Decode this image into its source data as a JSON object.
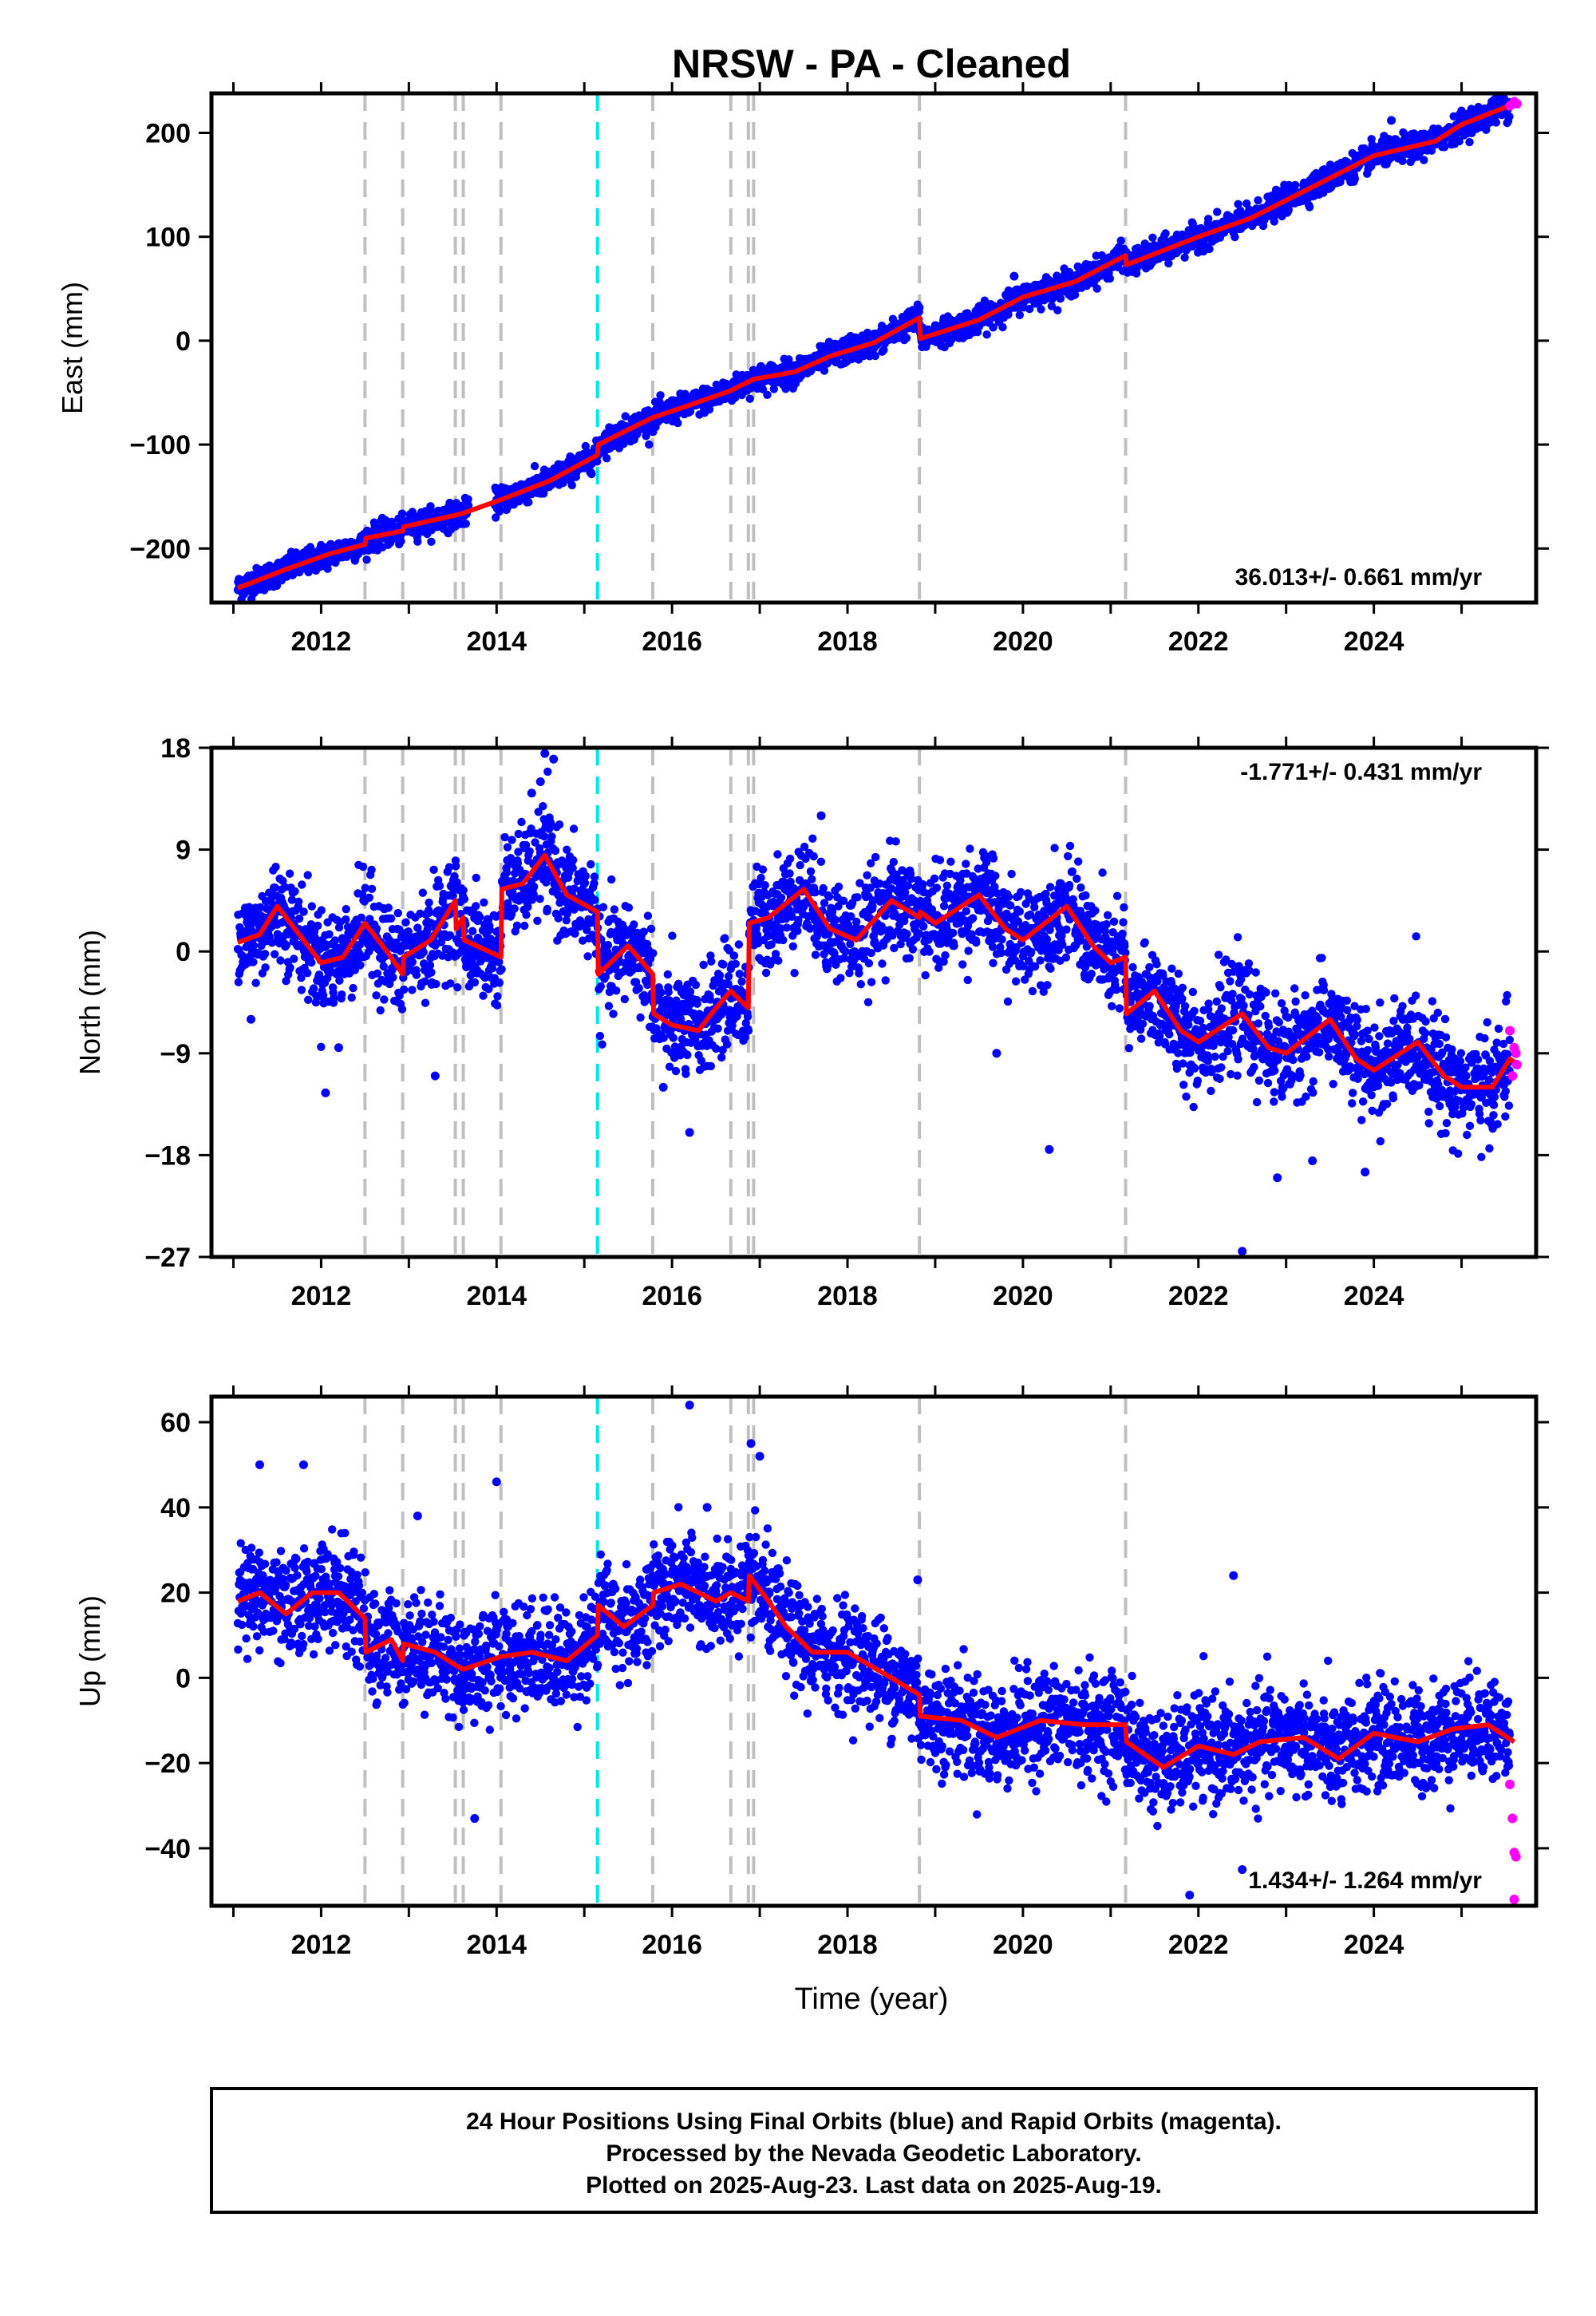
{
  "chart_data": {
    "title": "NRSW  - PA - Cleaned",
    "xlabel": "Time (year)",
    "xlim": [
      2010.75,
      2025.85
    ],
    "x_ticks": [
      2012,
      2014,
      2016,
      2018,
      2020,
      2022,
      2024
    ],
    "event_lines_gray": [
      2012.5,
      2012.93,
      2013.53,
      2013.62,
      2014.05,
      2015.78,
      2016.67,
      2016.87,
      2016.93,
      2018.82,
      2021.17
    ],
    "event_lines_cyan": [
      2015.15
    ],
    "colors": {
      "final": "#0000ff",
      "rapid": "#ff00ff",
      "model": "#ff0000",
      "event": "#bfbfbf",
      "equipment": "#00e5e5"
    },
    "panels": [
      {
        "type": "scatter",
        "ylabel": "East (mm)",
        "ylim": [
          -252,
          238
        ],
        "y_ticks": [
          -200,
          -100,
          0,
          100,
          200
        ],
        "y_tick_labels": [
          "−200",
          "−100",
          "0",
          "100",
          "200"
        ],
        "rate": "36.013+/- 0.661 mm/yr",
        "rate_position": "bottom-right",
        "scatter_amp": 6,
        "model": {
          "x": [
            2011.05,
            2011.6,
            2012.1,
            2012.5,
            2012.51,
            2012.93,
            2012.94,
            2013.53,
            2013.62,
            2014.05,
            2014.6,
            2015.15,
            2015.16,
            2015.78,
            2016.2,
            2016.67,
            2016.93,
            2017.4,
            2017.8,
            2018.3,
            2018.82,
            2018.83,
            2019.5,
            2020.0,
            2020.6,
            2021.17,
            2021.18,
            2022.0,
            2022.6,
            2023.3,
            2024.0,
            2024.7,
            2025.0,
            2025.6
          ],
          "y": [
            -238,
            -220,
            -205,
            -196,
            -190,
            -183,
            -179,
            -168,
            -166,
            -153,
            -135,
            -110,
            -100,
            -74,
            -62,
            -48,
            -37,
            -30,
            -15,
            -2,
            22,
            2,
            20,
            42,
            57,
            82,
            73,
            100,
            118,
            148,
            178,
            192,
            208,
            228
          ]
        },
        "rapid": {
          "x": [
            2025.55,
            2025.6,
            2025.63
          ],
          "y": [
            226,
            230,
            228
          ]
        },
        "outliers": {
          "x": [
            2014.3,
            2019.9,
            2024.2
          ],
          "y": [
            -140,
            62,
            212
          ]
        }
      },
      {
        "type": "scatter",
        "ylabel": "North (mm)",
        "ylim": [
          -27,
          18
        ],
        "y_ticks": [
          -27,
          -18,
          -9,
          0,
          9,
          18
        ],
        "y_tick_labels": [
          "−27",
          "−18",
          "−9",
          "0",
          "9",
          "18"
        ],
        "rate": "-1.771+/- 0.431 mm/yr",
        "rate_position": "top-right",
        "scatter_amp": 2.2,
        "model": {
          "x": [
            2011.05,
            2011.3,
            2011.5,
            2011.75,
            2012.0,
            2012.25,
            2012.5,
            2012.75,
            2012.93,
            2012.94,
            2013.25,
            2013.53,
            2013.54,
            2013.62,
            2013.63,
            2014.05,
            2014.06,
            2014.3,
            2014.55,
            2014.8,
            2015.15,
            2015.16,
            2015.5,
            2015.78,
            2015.79,
            2016.0,
            2016.3,
            2016.5,
            2016.67,
            2016.87,
            2016.88,
            2017.1,
            2017.5,
            2017.8,
            2018.1,
            2018.5,
            2018.82,
            2018.83,
            2019.0,
            2019.5,
            2019.8,
            2020.0,
            2020.5,
            2020.8,
            2021.0,
            2021.17,
            2021.18,
            2021.5,
            2021.8,
            2022.0,
            2022.5,
            2022.8,
            2023.0,
            2023.5,
            2023.8,
            2024.0,
            2024.5,
            2024.8,
            2025.0,
            2025.35,
            2025.55,
            2025.65
          ],
          "y": [
            0.8,
            1.5,
            4,
            1.5,
            -1,
            -0.5,
            2.5,
            0,
            -2,
            -0.5,
            1,
            4.5,
            2,
            3,
            1,
            -0.5,
            5.5,
            6,
            8.5,
            5,
            3.5,
            -2,
            0.5,
            -2,
            -5.5,
            -6.5,
            -7,
            -5,
            -3.5,
            -5,
            2.5,
            3,
            5.5,
            2,
            1,
            4.5,
            3,
            3.5,
            2.5,
            5,
            2,
            1,
            4,
            0.5,
            -1,
            -0.5,
            -5.5,
            -3.5,
            -7,
            -8,
            -5.5,
            -8.5,
            -9,
            -6,
            -9.5,
            -10.5,
            -8,
            -11,
            -12,
            -12,
            -9.5,
            -10
          ]
        },
        "rapid": {
          "x": [
            2025.55,
            2025.6,
            2025.63,
            2025.58,
            2025.62
          ],
          "y": [
            -7,
            -8.5,
            -10,
            -11,
            -9
          ]
        },
        "outliers": {
          "x": [
            2011.2,
            2012.05,
            2012.2,
            2014.5,
            2014.55,
            2014.65,
            2014.4,
            2016.2,
            2019.7,
            2020.3,
            2022.5,
            2022.9,
            2023.3,
            2023.9,
            2017.7,
            2015.9,
            2013.3
          ],
          "y": [
            -6,
            -12.5,
            -8.5,
            15,
            17.5,
            17,
            14,
            -16,
            -9,
            -17.5,
            -26.5,
            -20,
            -18.5,
            -19.5,
            12,
            -12,
            -11
          ]
        }
      },
      {
        "type": "scatter",
        "ylabel": "Up (mm)",
        "ylim": [
          -53.5,
          66
        ],
        "y_ticks": [
          -40,
          -20,
          0,
          20,
          40,
          60
        ],
        "y_tick_labels": [
          "−40",
          "−20",
          "0",
          "20",
          "40",
          "60"
        ],
        "rate": "1.434+/- 1.264 mm/yr",
        "rate_position": "bottom-right",
        "scatter_amp": 6,
        "model": {
          "x": [
            2011.05,
            2011.3,
            2011.6,
            2011.9,
            2012.2,
            2012.5,
            2012.51,
            2012.8,
            2012.93,
            2012.94,
            2013.3,
            2013.53,
            2013.62,
            2014.05,
            2014.4,
            2014.8,
            2015.15,
            2015.16,
            2015.45,
            2015.78,
            2015.79,
            2016.1,
            2016.5,
            2016.67,
            2016.87,
            2016.88,
            2017.1,
            2017.3,
            2017.6,
            2018.0,
            2018.5,
            2018.82,
            2018.83,
            2019.3,
            2019.7,
            2020.2,
            2020.7,
            2021.17,
            2021.18,
            2021.6,
            2022.0,
            2022.4,
            2022.7,
            2023.2,
            2023.6,
            2024.0,
            2024.5,
            2024.9,
            2025.3,
            2025.6
          ],
          "y": [
            18,
            20,
            15,
            20,
            20,
            14,
            6,
            9,
            4,
            8,
            6,
            3,
            2,
            5,
            6,
            4,
            10,
            17,
            12,
            17,
            20,
            22,
            18,
            20,
            18,
            24,
            18,
            12,
            6,
            6,
            0,
            -4,
            -9,
            -10,
            -14,
            -10,
            -11,
            -11,
            -15,
            -21,
            -16,
            -18,
            -15,
            -14,
            -19,
            -13,
            -15,
            -12,
            -11,
            -15
          ]
        },
        "rapid": {
          "x": [
            2025.55,
            2025.58,
            2025.6,
            2025.62,
            2025.6
          ],
          "y": [
            -25,
            -33,
            -41,
            -42,
            -52
          ]
        },
        "outliers": {
          "x": [
            2011.3,
            2011.8,
            2013.1,
            2016.2,
            2016.9,
            2017.0,
            2013.75,
            2022.5,
            2021.9,
            2018.8,
            2022.4,
            2016.4,
            2014.0
          ],
          "y": [
            50,
            50,
            38,
            64,
            55,
            52,
            -33,
            -45,
            -51,
            23,
            24,
            40,
            46
          ]
        }
      }
    ],
    "footer": [
      "24 Hour Positions Using Final Orbits (blue) and Rapid Orbits (magenta).",
      "Processed by the Nevada Geodetic Laboratory.",
      "Plotted on 2025-Aug-23. Last data on 2025-Aug-19."
    ]
  }
}
